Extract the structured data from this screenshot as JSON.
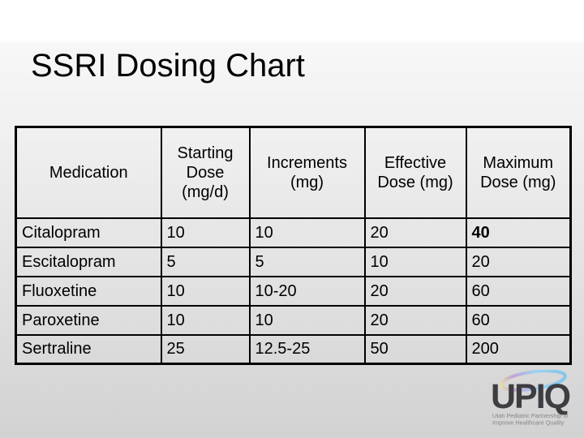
{
  "slide": {
    "title": "SSRI Dosing Chart"
  },
  "table": {
    "headers": [
      "Medication",
      "Starting Dose (mg/d)",
      "Increments (mg)",
      "Effective Dose (mg)",
      "Maximum Dose (mg)"
    ],
    "rows": [
      {
        "cells": [
          "Citalopram",
          "10",
          "10",
          "20",
          "40"
        ],
        "bold_cells": [
          4
        ]
      },
      {
        "cells": [
          "Escitalopram",
          "5",
          "5",
          "10",
          "20"
        ],
        "bold_cells": []
      },
      {
        "cells": [
          "Fluoxetine",
          "10",
          "10-20",
          "20",
          "60"
        ],
        "bold_cells": []
      },
      {
        "cells": [
          "Paroxetine",
          "10",
          "10",
          "20",
          "60"
        ],
        "bold_cells": []
      },
      {
        "cells": [
          "Sertraline",
          "25",
          "12.5-25",
          "50",
          "200"
        ],
        "bold_cells": []
      }
    ]
  },
  "logo": {
    "acronym": "UPIQ",
    "tagline_line1": "Utah Pediatric Partnership to",
    "tagline_line2": "Improve Healthcare Quality",
    "colors": {
      "swirl_blue": "#82c6ec",
      "swirl_purple": "#c2a0d8",
      "swirl_cream": "#e9d9a8",
      "letters_gray": "#3e3e42",
      "tagline_gray": "#858585"
    }
  }
}
